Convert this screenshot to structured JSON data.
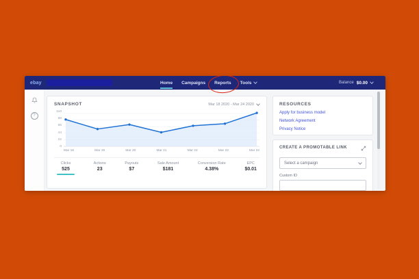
{
  "colors": {
    "background_orange": "#d14b06",
    "navbar_navy": "#1f2878",
    "annotation_red": "#dd2415",
    "accent_teal": "#3ec3c9",
    "nav_active_underline": "#5fc3dc",
    "link_blue": "#4053e0",
    "chart_line": "#1f72d4",
    "chart_fill": "#d9e8fa"
  },
  "navbar": {
    "logo": "ebay",
    "items": [
      {
        "label": "Home",
        "active": true
      },
      {
        "label": "Campaigns",
        "active": false
      },
      {
        "label": "Reports",
        "active": false,
        "annotated_with_red_ellipse": true
      },
      {
        "label": "Tools",
        "active": false,
        "has_chevron": true
      }
    ],
    "balance_label": "Balance",
    "balance_value": "$0.00"
  },
  "snapshot": {
    "title": "SNAPSHOT",
    "date_range": "Mar 18 2020 - Mar 24 2020",
    "metrics": [
      {
        "label": "Clicks",
        "value": "525",
        "selected": true
      },
      {
        "label": "Actions",
        "value": "23",
        "selected": false
      },
      {
        "label": "Payouts",
        "value": "$7",
        "selected": false
      },
      {
        "label": "Sale Amount",
        "value": "$181",
        "selected": false
      },
      {
        "label": "Conversion Rate",
        "value": "4.38%",
        "selected": false
      },
      {
        "label": "EPC",
        "value": "$0.01",
        "selected": false
      }
    ]
  },
  "chart_data": {
    "type": "line",
    "title": "SNAPSHOT",
    "x": [
      "Mar 18",
      "Mar 19",
      "Mar 20",
      "Mar 21",
      "Mar 22",
      "Mar 23",
      "Mar 24"
    ],
    "series": [
      {
        "name": "Clicks",
        "values": [
          90,
          58,
          73,
          47,
          69,
          76,
          112
        ]
      }
    ],
    "xlabel": "",
    "ylabel": "",
    "ylim": [
      0,
      110
    ],
    "yticks": [
      0,
      22,
      44,
      66,
      88,
      110
    ],
    "grid": true,
    "legend_position": "none",
    "line_color": "#1f72d4",
    "fill_color": "#d9e8fa"
  },
  "resources": {
    "title": "RESOURCES",
    "links": [
      "Apply for business model",
      "Network Agreement",
      "Privacy Notice"
    ]
  },
  "promotable": {
    "title": "CREATE A PROMOTABLE LINK",
    "select_placeholder": "Select a campaign",
    "custom_id_label": "Custom ID"
  }
}
